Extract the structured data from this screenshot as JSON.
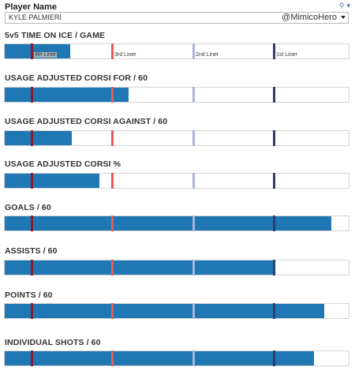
{
  "header": {
    "label": "Player Name",
    "player_value": "KYLE PALMIERI",
    "watermark": "@MimicoHero"
  },
  "reference_lines": [
    {
      "name": "4th Liner",
      "color": "#8b1a2b"
    },
    {
      "name": "3rd Liner",
      "color": "#e35a5a"
    },
    {
      "name": "2nd Liner",
      "color": "#a9b4dc"
    },
    {
      "name": "1st Liner",
      "color": "#2e3f6e"
    }
  ],
  "chart_data": [
    {
      "type": "bar",
      "title": "5v5 TIME ON ICE / GAME",
      "value": 0.19,
      "ref_positions": [
        0.075,
        0.31,
        0.545,
        0.78
      ],
      "show_ref_labels": true
    },
    {
      "type": "bar",
      "title": "USAGE ADJUSTED CORSI FOR / 60",
      "value": 0.36,
      "ref_positions": [
        0.075,
        0.31,
        0.545,
        0.78
      ],
      "show_ref_labels": false
    },
    {
      "type": "bar",
      "title": "USAGE ADJUSTED CORSI AGAINST / 60",
      "value": 0.195,
      "ref_positions": [
        0.075,
        0.31,
        0.545,
        0.78
      ],
      "show_ref_labels": false
    },
    {
      "type": "bar",
      "title": "USAGE ADJUSTED CORSI %",
      "value": 0.275,
      "ref_positions": [
        0.075,
        0.31,
        0.545,
        0.78
      ],
      "show_ref_labels": false
    },
    {
      "type": "bar",
      "title": "GOALS / 60",
      "value": 0.95,
      "ref_positions": [
        0.075,
        0.31,
        0.545,
        0.78
      ],
      "show_ref_labels": false
    },
    {
      "type": "bar",
      "title": "ASSISTS / 60",
      "value": 0.78,
      "ref_positions": [
        0.075,
        0.31,
        0.545,
        0.78
      ],
      "show_ref_labels": false
    },
    {
      "type": "bar",
      "title": "POINTS / 60",
      "value": 0.93,
      "ref_positions": [
        0.075,
        0.31,
        0.545,
        0.78
      ],
      "show_ref_labels": false
    },
    {
      "type": "bar",
      "title": "INDIVIDUAL SHOTS / 60",
      "value": 0.9,
      "ref_positions": [
        0.075,
        0.31,
        0.545,
        0.78
      ],
      "show_ref_labels": false
    }
  ]
}
